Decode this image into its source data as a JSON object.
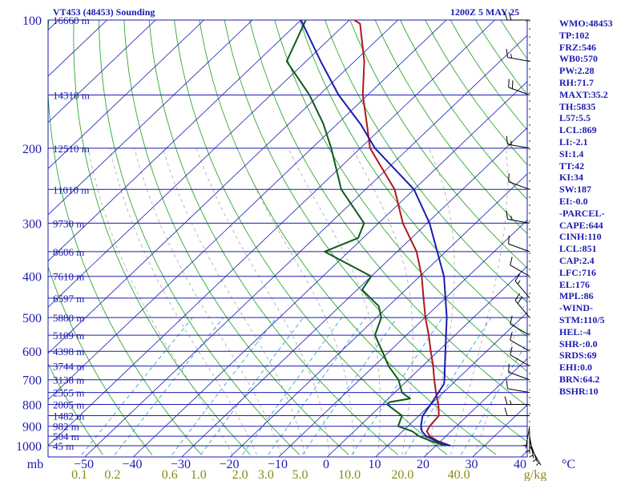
{
  "header": {
    "station_title": "VT453 (48453) Sounding",
    "valid_time": "1200Z  5 MAY 25"
  },
  "side_panel": {
    "items": [
      "WMO:48453",
      "TP:102",
      "FRZ:546",
      "WB0:570",
      "PW:2.28",
      "RH:71.7",
      "MAXT:35.2",
      "TH:5835",
      "L57:5.5",
      "LCL:869",
      "LI:-2.1",
      "SI:1.4",
      "TT:42",
      "KI:34",
      "SW:187",
      "EI:-0.0",
      "-PARCEL-",
      "CAPE:644",
      "CINH:110",
      "LCL:851",
      "CAP:2.4",
      "LFC:716",
      "EL:176",
      "MPL:86",
      "-WIND-",
      "STM:110/5",
      "HEL:-4",
      "SHR-:0.0",
      "SRDS:69",
      "EHI:0.0",
      "BRN:64.2",
      "BSHR:10"
    ]
  },
  "colors": {
    "axis_blue": "#1b1bb0",
    "isobar": "#1b1bb0",
    "isotherm": "#1b1bb0",
    "dry_adiabat": "#2fa82f",
    "moist_adiabat": "#a8a8a8",
    "mixing_ratio": "#3aa0d8",
    "temperature": "#b01818",
    "dewpoint": "#105a1a",
    "parcel": "#1b1bb0",
    "mixing_ratio_labels": "#8a8a1a",
    "wind_barbs": "#000000"
  },
  "chart_data": {
    "type": "skew-t log-p sounding",
    "x_unit": "°C",
    "y_unit": "mb",
    "y_scale": "log",
    "xlim": [
      -50,
      50
    ],
    "ylim": [
      1050,
      100
    ],
    "pressure_tick_labels": [
      100,
      200,
      300,
      400,
      500,
      600,
      700,
      800,
      900,
      1000
    ],
    "temperature_tick_labels": [
      "mb",
      "−50",
      "−40",
      "−30",
      "−20",
      "−10",
      "0",
      "10",
      "20",
      "30",
      "40",
      "°C"
    ],
    "mixing_ratio_labels": [
      "0.1",
      "0.2",
      "0.6",
      "1.0",
      "2.0",
      "3.0",
      "5.0",
      "10.0",
      "20.0",
      "40.0",
      "g/kg"
    ],
    "mixing_ratio_values": [
      0.1,
      0.2,
      0.6,
      1.0,
      2.0,
      3.0,
      5.0,
      10.0,
      20.0,
      40.0
    ],
    "heights": [
      {
        "p": 100,
        "label": "16660 m"
      },
      {
        "p": 150,
        "label": "14310 m"
      },
      {
        "p": 200,
        "label": "12510 m"
      },
      {
        "p": 250,
        "label": "11010 m"
      },
      {
        "p": 300,
        "label": "9730 m"
      },
      {
        "p": 350,
        "label": "8606 m"
      },
      {
        "p": 400,
        "label": "7610 m"
      },
      {
        "p": 450,
        "label": "6597 m"
      },
      {
        "p": 500,
        "label": "5880 m"
      },
      {
        "p": 550,
        "label": "5109 m"
      },
      {
        "p": 600,
        "label": "4398 m"
      },
      {
        "p": 650,
        "label": "3744 m"
      },
      {
        "p": 700,
        "label": "3138 m"
      },
      {
        "p": 750,
        "label": "2555 m"
      },
      {
        "p": 800,
        "label": "2005 m"
      },
      {
        "p": 850,
        "label": "1482 m"
      },
      {
        "p": 900,
        "label": "982 m"
      },
      {
        "p": 950,
        "label": "504 m"
      },
      {
        "p": 1000,
        "label": "45 m"
      }
    ],
    "series": [
      {
        "name": "temperature",
        "points": [
          [
            1000,
            33
          ],
          [
            975,
            29.4
          ],
          [
            950,
            26.7
          ],
          [
            925,
            25
          ],
          [
            900,
            24.5
          ],
          [
            850,
            24.1
          ],
          [
            800,
            21.6
          ],
          [
            750,
            18.5
          ],
          [
            700,
            15.4
          ],
          [
            650,
            12.2
          ],
          [
            600,
            8.5
          ],
          [
            550,
            4.6
          ],
          [
            500,
            0.1
          ],
          [
            450,
            -4.5
          ],
          [
            400,
            -9.6
          ],
          [
            350,
            -16
          ],
          [
            300,
            -25
          ],
          [
            250,
            -34
          ],
          [
            200,
            -48
          ],
          [
            175,
            -54
          ],
          [
            150,
            -61
          ],
          [
            125,
            -68
          ],
          [
            102,
            -77
          ],
          [
            100,
            -79
          ]
        ]
      },
      {
        "name": "dewpoint",
        "points": [
          [
            1000,
            32
          ],
          [
            975,
            28
          ],
          [
            950,
            24.5
          ],
          [
            925,
            22
          ],
          [
            900,
            18
          ],
          [
            850,
            16.5
          ],
          [
            800,
            11
          ],
          [
            790,
            11
          ],
          [
            775,
            14.5
          ],
          [
            750,
            11.5
          ],
          [
            700,
            8
          ],
          [
            650,
            3
          ],
          [
            600,
            -1.5
          ],
          [
            550,
            -6.5
          ],
          [
            500,
            -9
          ],
          [
            470,
            -12
          ],
          [
            430,
            -19
          ],
          [
            400,
            -20
          ],
          [
            350,
            -35
          ],
          [
            325,
            -31
          ],
          [
            300,
            -33
          ],
          [
            250,
            -45
          ],
          [
            200,
            -56
          ],
          [
            175,
            -63
          ],
          [
            150,
            -72
          ],
          [
            125,
            -84
          ],
          [
            100,
            -89
          ]
        ]
      },
      {
        "name": "parcel",
        "points": [
          [
            1000,
            33
          ],
          [
            975,
            29
          ],
          [
            950,
            26
          ],
          [
            925,
            24
          ],
          [
            900,
            22.7
          ],
          [
            851,
            20.8
          ],
          [
            800,
            20
          ],
          [
            716,
            18.3
          ],
          [
            700,
            17.5
          ],
          [
            600,
            11.5
          ],
          [
            500,
            4.5
          ],
          [
            400,
            -5
          ],
          [
            300,
            -19.5
          ],
          [
            250,
            -30
          ],
          [
            200,
            -47
          ],
          [
            176,
            -55
          ],
          [
            150,
            -66
          ],
          [
            125,
            -77
          ],
          [
            100,
            -90
          ]
        ]
      }
    ],
    "winds": [
      {
        "p": 1000,
        "dir": 150,
        "spd": 5
      },
      {
        "p": 975,
        "dir": 160,
        "spd": 5
      },
      {
        "p": 950,
        "dir": 170,
        "spd": 5
      },
      {
        "p": 925,
        "dir": 180,
        "spd": 5
      },
      {
        "p": 900,
        "dir": 190,
        "spd": 5
      },
      {
        "p": 850,
        "dir": 270,
        "spd": 10
      },
      {
        "p": 800,
        "dir": 270,
        "spd": 15
      },
      {
        "p": 750,
        "dir": 280,
        "spd": 10
      },
      {
        "p": 700,
        "dir": 290,
        "spd": 10
      },
      {
        "p": 650,
        "dir": 300,
        "spd": 10
      },
      {
        "p": 600,
        "dir": 300,
        "spd": 10
      },
      {
        "p": 550,
        "dir": 300,
        "spd": 10
      },
      {
        "p": 500,
        "dir": 320,
        "spd": 20
      },
      {
        "p": 450,
        "dir": 320,
        "spd": 15
      },
      {
        "p": 400,
        "dir": 300,
        "spd": 10
      },
      {
        "p": 350,
        "dir": 290,
        "spd": 10
      },
      {
        "p": 300,
        "dir": 280,
        "spd": 15
      },
      {
        "p": 250,
        "dir": 290,
        "spd": 10
      },
      {
        "p": 200,
        "dir": 280,
        "spd": 15
      },
      {
        "p": 150,
        "dir": 290,
        "spd": 20
      },
      {
        "p": 125,
        "dir": 280,
        "spd": 15
      },
      {
        "p": 100,
        "dir": 270,
        "spd": 20
      }
    ]
  }
}
